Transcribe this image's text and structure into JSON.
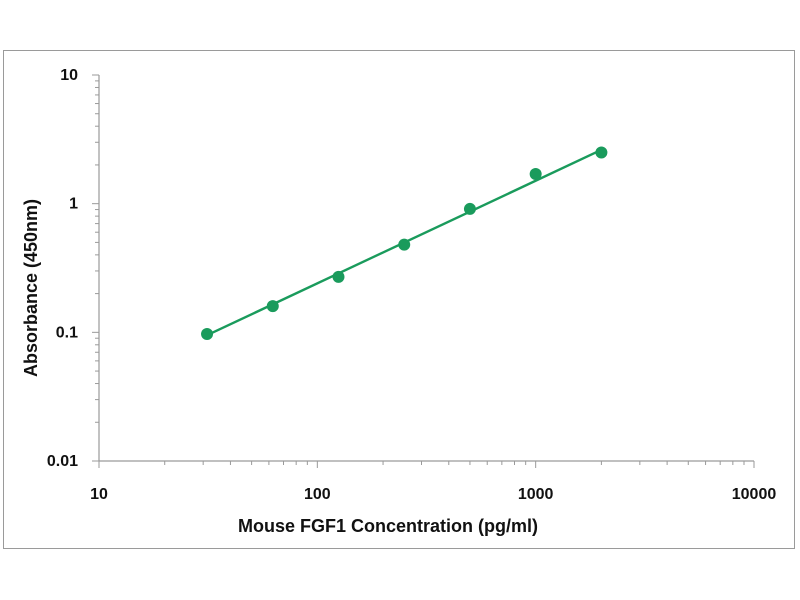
{
  "chart_data": {
    "type": "scatter",
    "title": "",
    "xlabel": "Mouse FGF1 Concentration (pg/ml)",
    "ylabel": "Absorbance (450nm)",
    "x_scale": "log",
    "y_scale": "log",
    "xlim": [
      10,
      10000
    ],
    "ylim": [
      0.01,
      10
    ],
    "x_ticks": [
      "10",
      "100",
      "1000",
      "10000"
    ],
    "y_ticks": [
      "0.01",
      "0.1",
      "1",
      "10"
    ],
    "grid": false,
    "legend": "none",
    "series": [
      {
        "x": [
          31.25,
          62.5,
          125,
          250,
          500,
          1000,
          2000
        ],
        "y": [
          0.097,
          0.16,
          0.27,
          0.48,
          0.91,
          1.7,
          2.5
        ]
      }
    ],
    "fit_line": {
      "x": [
        31.25,
        2000
      ],
      "y": [
        0.095,
        2.62
      ]
    },
    "colors": {
      "series": "#1a9b5c",
      "axis": "#9a9a9a",
      "frame": "#9a9a9a"
    }
  }
}
